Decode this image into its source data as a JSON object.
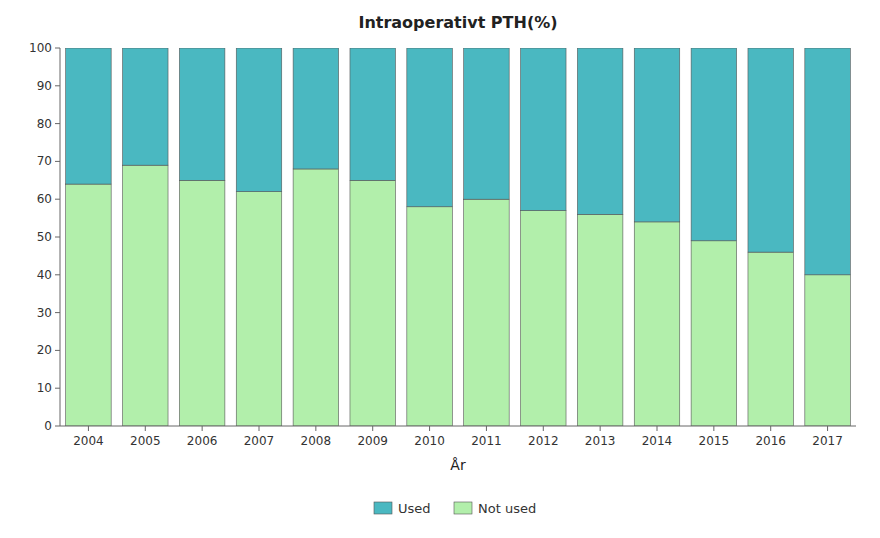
{
  "chart_data": {
    "type": "bar",
    "title": "Intraoperativt PTH(%)",
    "xlabel": "År",
    "categories": [
      "2004",
      "2005",
      "2006",
      "2007",
      "2008",
      "2009",
      "2010",
      "2011",
      "2012",
      "2013",
      "2014",
      "2015",
      "2016",
      "2017"
    ],
    "series": [
      {
        "name": "Not used",
        "color": "#b2efab",
        "values": [
          64,
          69,
          65,
          62,
          68,
          65,
          58,
          60,
          57,
          56,
          54,
          49,
          46,
          40
        ]
      },
      {
        "name": "Used",
        "color": "#4ab8c1",
        "values": [
          36,
          31,
          35,
          38,
          32,
          35,
          42,
          40,
          43,
          44,
          46,
          51,
          54,
          60
        ]
      }
    ],
    "stacked": true,
    "ylim": [
      0,
      100
    ],
    "yticks": [
      0,
      10,
      20,
      30,
      40,
      50,
      60,
      70,
      80,
      90,
      100
    ],
    "grid": false,
    "legend": "bottom"
  }
}
